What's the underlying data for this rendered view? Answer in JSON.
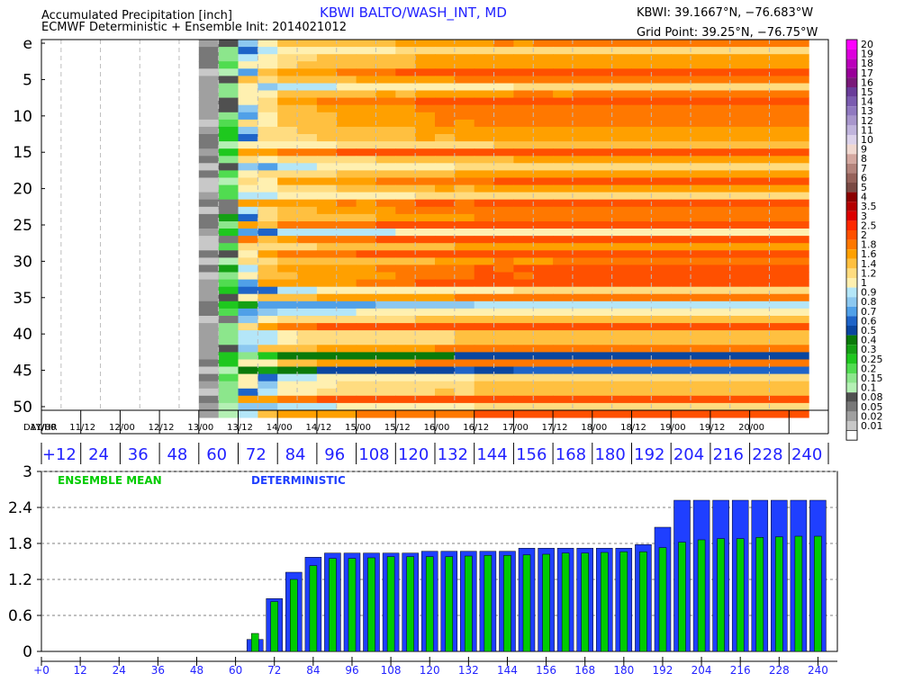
{
  "header": {
    "title_line1": "Accumulated Precipitation [inch]",
    "title_line2": "ECMWF Deterministic + Ensemble Init: 2014021012",
    "station": "KBWI BALTO/WASH_INT, MD",
    "station_coords": "KBWI: 39.1667°N, −76.683°W",
    "grid_point": "Grid Point: 39.25°N, −76.75°W"
  },
  "colors": {
    "ensemble_mean": "#00cc00",
    "deterministic": "#1f3fff",
    "hour_label": "#2222ff"
  },
  "plume": {
    "member_labels": [
      "e",
      "5",
      "10",
      "15",
      "20",
      "25",
      "30",
      "35",
      "40",
      "45",
      "50"
    ],
    "day_hr_label": "DAY/HR",
    "day_labels": [
      "11/00",
      "11/12",
      "12/00",
      "12/12",
      "13/00",
      "13/12",
      "14/00",
      "14/12",
      "15/00",
      "15/12",
      "16/00",
      "16/12",
      "17/00",
      "17/12",
      "18/00",
      "18/12",
      "19/00",
      "19/12",
      "20/00"
    ],
    "hour_labels": [
      "+12",
      "24",
      "36",
      "48",
      "60",
      "72",
      "84",
      "96",
      "108",
      "120",
      "132",
      "144",
      "156",
      "168",
      "180",
      "192",
      "204",
      "216",
      "228",
      "240"
    ]
  },
  "colorbar": {
    "levels": [
      "20",
      "19",
      "18",
      "17",
      "16",
      "15",
      "14",
      "13",
      "12",
      "11",
      "10",
      "9",
      "8",
      "7",
      "6",
      "5",
      "4",
      "3.5",
      "3",
      "2.5",
      "2",
      "1.8",
      "1.6",
      "1.4",
      "1.2",
      "1",
      "0.9",
      "0.8",
      "0.7",
      "0.6",
      "0.5",
      "0.4",
      "0.3",
      "0.25",
      "0.2",
      "0.15",
      "0.1",
      "0.08",
      "0.05",
      "0.02",
      "0.01"
    ],
    "colors": [
      "#ff00ff",
      "#dd00dd",
      "#bb00bb",
      "#990099",
      "#7a1a7a",
      "#6a3d9a",
      "#7b5cb0",
      "#9079c0",
      "#a896cc",
      "#c0b4dc",
      "#dcd2ea",
      "#f0d8d0",
      "#d4a8a0",
      "#b4847c",
      "#96625a",
      "#7a4a44",
      "#8b0000",
      "#b40000",
      "#dc0000",
      "#ff2800",
      "#ff5000",
      "#ff7800",
      "#ffa000",
      "#ffc040",
      "#ffdc80",
      "#fff0b0",
      "#b4e6f8",
      "#8cc8f0",
      "#50a0e8",
      "#1e64c8",
      "#0a46a0",
      "#0a7a0a",
      "#14a014",
      "#1ec81e",
      "#50dc50",
      "#8ce68c",
      "#b4f0b4",
      "#505050",
      "#787878",
      "#a0a0a0",
      "#c8c8c8"
    ],
    "below_min_color": "#ffffff"
  },
  "chart_data": {
    "type": "bar",
    "series": [
      {
        "name": "DETERMINISTIC",
        "x": [
          66,
          72,
          78,
          84,
          90,
          96,
          102,
          108,
          114,
          120,
          126,
          132,
          138,
          144,
          150,
          156,
          162,
          168,
          174,
          180,
          186,
          192,
          198,
          204,
          210,
          216,
          222,
          228,
          234,
          240
        ],
        "values": [
          0.2,
          0.88,
          1.32,
          1.57,
          1.64,
          1.64,
          1.64,
          1.64,
          1.64,
          1.67,
          1.67,
          1.67,
          1.67,
          1.67,
          1.72,
          1.72,
          1.72,
          1.72,
          1.72,
          1.72,
          1.78,
          2.07,
          2.52,
          2.52,
          2.52,
          2.52,
          2.52,
          2.52,
          2.52,
          2.52
        ]
      },
      {
        "name": "ENSEMBLE MEAN",
        "x": [
          66,
          72,
          78,
          84,
          90,
          96,
          102,
          108,
          114,
          120,
          126,
          132,
          138,
          144,
          150,
          156,
          162,
          168,
          174,
          180,
          186,
          192,
          198,
          204,
          210,
          216,
          222,
          228,
          234,
          240
        ],
        "values": [
          0.3,
          0.83,
          1.2,
          1.43,
          1.55,
          1.55,
          1.56,
          1.58,
          1.58,
          1.58,
          1.58,
          1.59,
          1.6,
          1.6,
          1.61,
          1.62,
          1.64,
          1.64,
          1.65,
          1.66,
          1.66,
          1.73,
          1.82,
          1.86,
          1.88,
          1.88,
          1.9,
          1.91,
          1.92,
          1.92
        ]
      }
    ],
    "xticks": [
      "+0",
      "12",
      "24",
      "36",
      "48",
      "60",
      "72",
      "84",
      "96",
      "108",
      "120",
      "132",
      "144",
      "156",
      "168",
      "180",
      "192",
      "204",
      "216",
      "228",
      "240"
    ],
    "yticks": [
      "0",
      "0.6",
      "1.2",
      "1.8",
      "2.4",
      "3"
    ],
    "xlim": [
      0,
      246
    ],
    "ylim": [
      0,
      3
    ],
    "grid": true,
    "legend_position": "top-left"
  }
}
